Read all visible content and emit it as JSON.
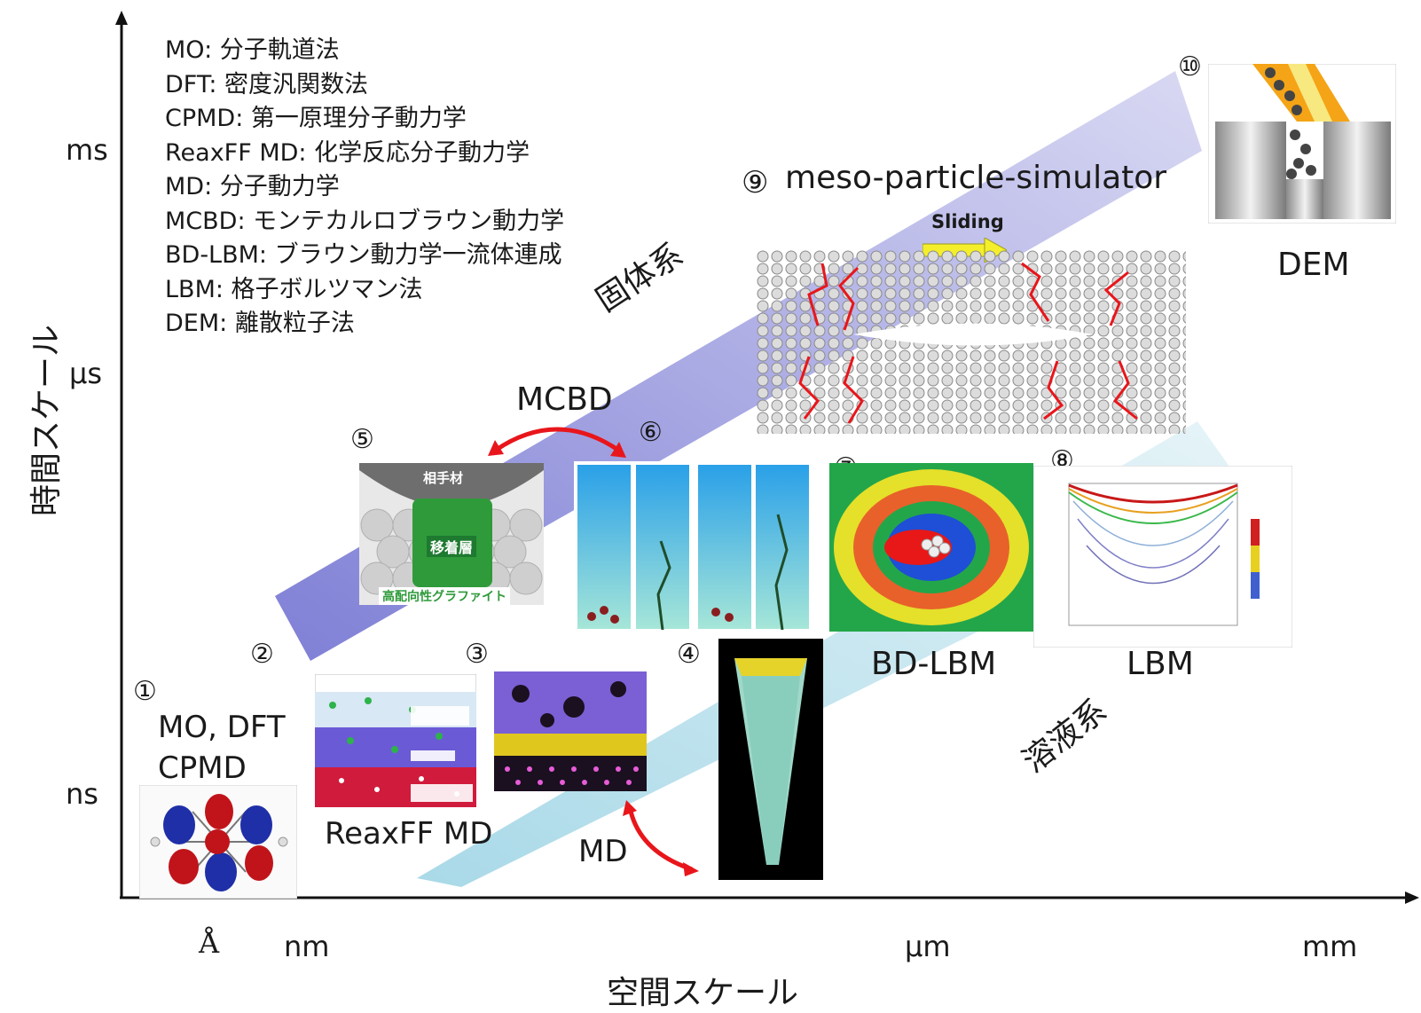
{
  "legend": [
    "MO: 分子軌道法",
    "DFT: 密度汎関数法",
    "CPMD: 第一原理分子動力学",
    "ReaxFF MD: 化学反応分子動力学",
    "MD: 分子動力学",
    "MCBD: モンテカルロブラウン動力学",
    "BD-LBM: ブラウン動力学一流体連成",
    "LBM: 格子ボルツマン法",
    "DEM: 離散粒子法"
  ],
  "axes": {
    "y_title": "時間スケール",
    "x_title": "空間スケール",
    "y_ticks": [
      "ms",
      "μs",
      "ns"
    ],
    "x_ticks": [
      "Å",
      "nm",
      "μm",
      "mm"
    ]
  },
  "regions": {
    "solid": "固体系",
    "solution": "溶液系"
  },
  "methods": {
    "m1": {
      "num": "①",
      "line1": "MO, DFT",
      "line2": "CPMD"
    },
    "m2": {
      "num": "②",
      "label": "ReaxFF MD"
    },
    "m3": {
      "num": "③"
    },
    "m4": {
      "num": "④"
    },
    "m5": {
      "num": "⑤",
      "top": "相手材",
      "mid": "移着層",
      "bottom": "高配向性グラファイト"
    },
    "m6": {
      "num": "⑥"
    },
    "m7": {
      "num": "⑦",
      "label": "BD-LBM"
    },
    "m8": {
      "num": "⑧",
      "label": "LBM"
    },
    "m9": {
      "num": "⑨",
      "label": "meso-particle-simulator",
      "sliding": "Sliding"
    },
    "m10": {
      "num": "⑩",
      "label": "DEM"
    }
  },
  "connectors": {
    "mcbd": "MCBD",
    "md": "MD"
  },
  "colors": {
    "solid_band": "#8f8fdc",
    "solution_band": "#bfe4ee",
    "arrow": "#e8161b",
    "sliding_arrow": "#f4ef2a",
    "graphite_green": "#2f9a3a"
  }
}
